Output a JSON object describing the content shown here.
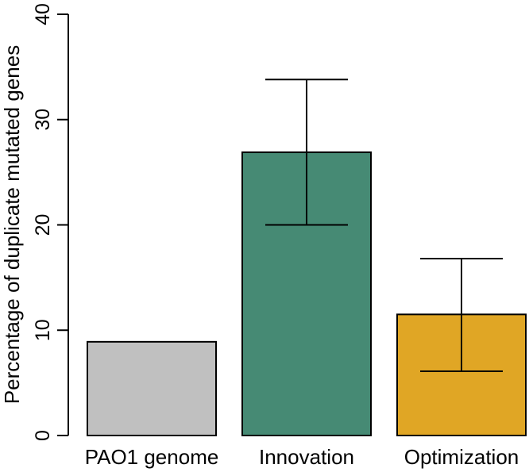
{
  "chart_data": {
    "type": "bar",
    "title": "",
    "xlabel": "",
    "ylabel": "Percentage of duplicate mutated genes",
    "categories": [
      "PAO1 genome",
      "Innovation",
      "Optimization"
    ],
    "values": [
      8.9,
      26.9,
      11.5
    ],
    "error_low": [
      0,
      20.0,
      6.1
    ],
    "error_high": [
      0,
      33.8,
      16.8
    ],
    "colors": [
      "#c0c0c0",
      "#468a74",
      "#e0a625"
    ],
    "ylim": [
      0,
      40
    ],
    "yticks": [
      "0",
      "10",
      "20",
      "30",
      "40"
    ],
    "grid": false,
    "legend": "none"
  }
}
